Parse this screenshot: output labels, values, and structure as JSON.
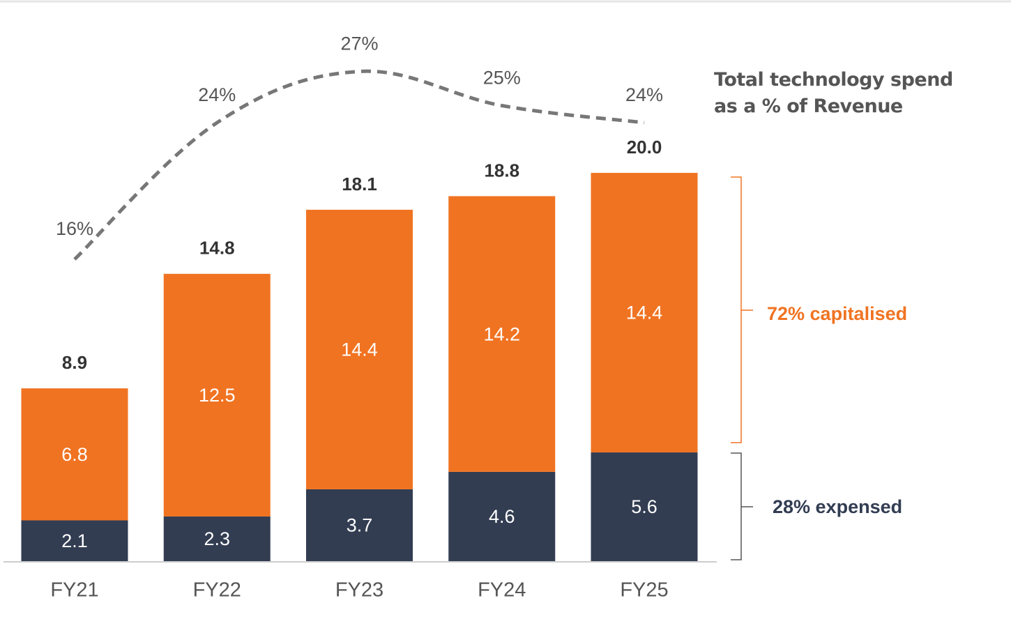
{
  "chart_data": {
    "type": "stacked-bar-line",
    "categories": [
      "FY21",
      "FY22",
      "FY23",
      "FY24",
      "FY25"
    ],
    "series": [
      {
        "name": "28% expensed",
        "color": "#323d52",
        "values": [
          2.1,
          2.3,
          3.7,
          4.6,
          5.6
        ]
      },
      {
        "name": "72% capitalised",
        "color": "#f07322",
        "values": [
          6.8,
          12.5,
          14.4,
          14.2,
          14.4
        ]
      },
      {
        "name": "Total technology spend as a % of Revenue",
        "color": "#777777",
        "axis": "y2",
        "values": [
          16,
          24,
          27,
          25,
          24
        ],
        "value_labels": [
          "16%",
          "24%",
          "27%",
          "25%",
          "24%"
        ]
      }
    ],
    "totals": {
      "values": [
        8.9,
        14.8,
        18.1,
        18.8,
        20
      ],
      "value_labels": [
        "8.9",
        "14.8",
        "18.1",
        "18.8",
        "20.0"
      ]
    }
  }
}
